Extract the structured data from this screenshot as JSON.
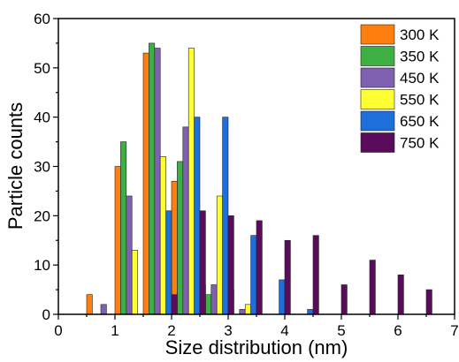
{
  "chart_data": {
    "type": "bar",
    "xlabel": "Size distribution (nm)",
    "ylabel": "Particle counts",
    "xlim": [
      0,
      7
    ],
    "ylim": [
      0,
      60
    ],
    "xticks": [
      "0",
      "1",
      "2",
      "3",
      "4",
      "5",
      "6",
      "7"
    ],
    "yticks": [
      "0",
      "10",
      "20",
      "30",
      "40",
      "50",
      "60"
    ],
    "grid": false,
    "legend_position": "top-right",
    "bin_width": 0.1,
    "series": [
      {
        "name": "300 K",
        "color": "#ff7f0e",
        "points": [
          {
            "x": 0.55,
            "y": 4
          },
          {
            "x": 1.05,
            "y": 30
          },
          {
            "x": 1.55,
            "y": 53
          },
          {
            "x": 2.05,
            "y": 27
          },
          {
            "x": 2.55,
            "y": 6
          },
          {
            "x": 3.05,
            "y": 5
          }
        ]
      },
      {
        "name": "350 K",
        "color": "#3cb043",
        "points": [
          {
            "x": 1.15,
            "y": 35
          },
          {
            "x": 1.65,
            "y": 55
          },
          {
            "x": 2.15,
            "y": 31
          },
          {
            "x": 2.65,
            "y": 4
          }
        ]
      },
      {
        "name": "450 K",
        "color": "#8060b0",
        "points": [
          {
            "x": 0.8,
            "y": 2
          },
          {
            "x": 1.25,
            "y": 24
          },
          {
            "x": 1.75,
            "y": 54
          },
          {
            "x": 2.25,
            "y": 38
          },
          {
            "x": 2.75,
            "y": 6
          },
          {
            "x": 3.25,
            "y": 1
          }
        ]
      },
      {
        "name": "550 K",
        "color": "#ffff33",
        "points": [
          {
            "x": 1.35,
            "y": 13
          },
          {
            "x": 1.85,
            "y": 32
          },
          {
            "x": 2.35,
            "y": 54
          },
          {
            "x": 2.85,
            "y": 24
          },
          {
            "x": 3.35,
            "y": 2
          }
        ]
      },
      {
        "name": "650 K",
        "color": "#1f6fdb",
        "points": [
          {
            "x": 1.95,
            "y": 21
          },
          {
            "x": 2.45,
            "y": 40
          },
          {
            "x": 2.95,
            "y": 40
          },
          {
            "x": 3.45,
            "y": 16
          },
          {
            "x": 3.95,
            "y": 7
          },
          {
            "x": 4.45,
            "y": 1
          }
        ]
      },
      {
        "name": "750 K",
        "color": "#5b0b5b",
        "points": [
          {
            "x": 2.05,
            "y": 4
          },
          {
            "x": 2.55,
            "y": 21
          },
          {
            "x": 3.05,
            "y": 20
          },
          {
            "x": 3.55,
            "y": 19
          },
          {
            "x": 4.05,
            "y": 15
          },
          {
            "x": 4.55,
            "y": 16
          },
          {
            "x": 5.05,
            "y": 6
          },
          {
            "x": 5.55,
            "y": 11
          },
          {
            "x": 6.05,
            "y": 8
          },
          {
            "x": 6.55,
            "y": 5
          }
        ]
      }
    ]
  }
}
